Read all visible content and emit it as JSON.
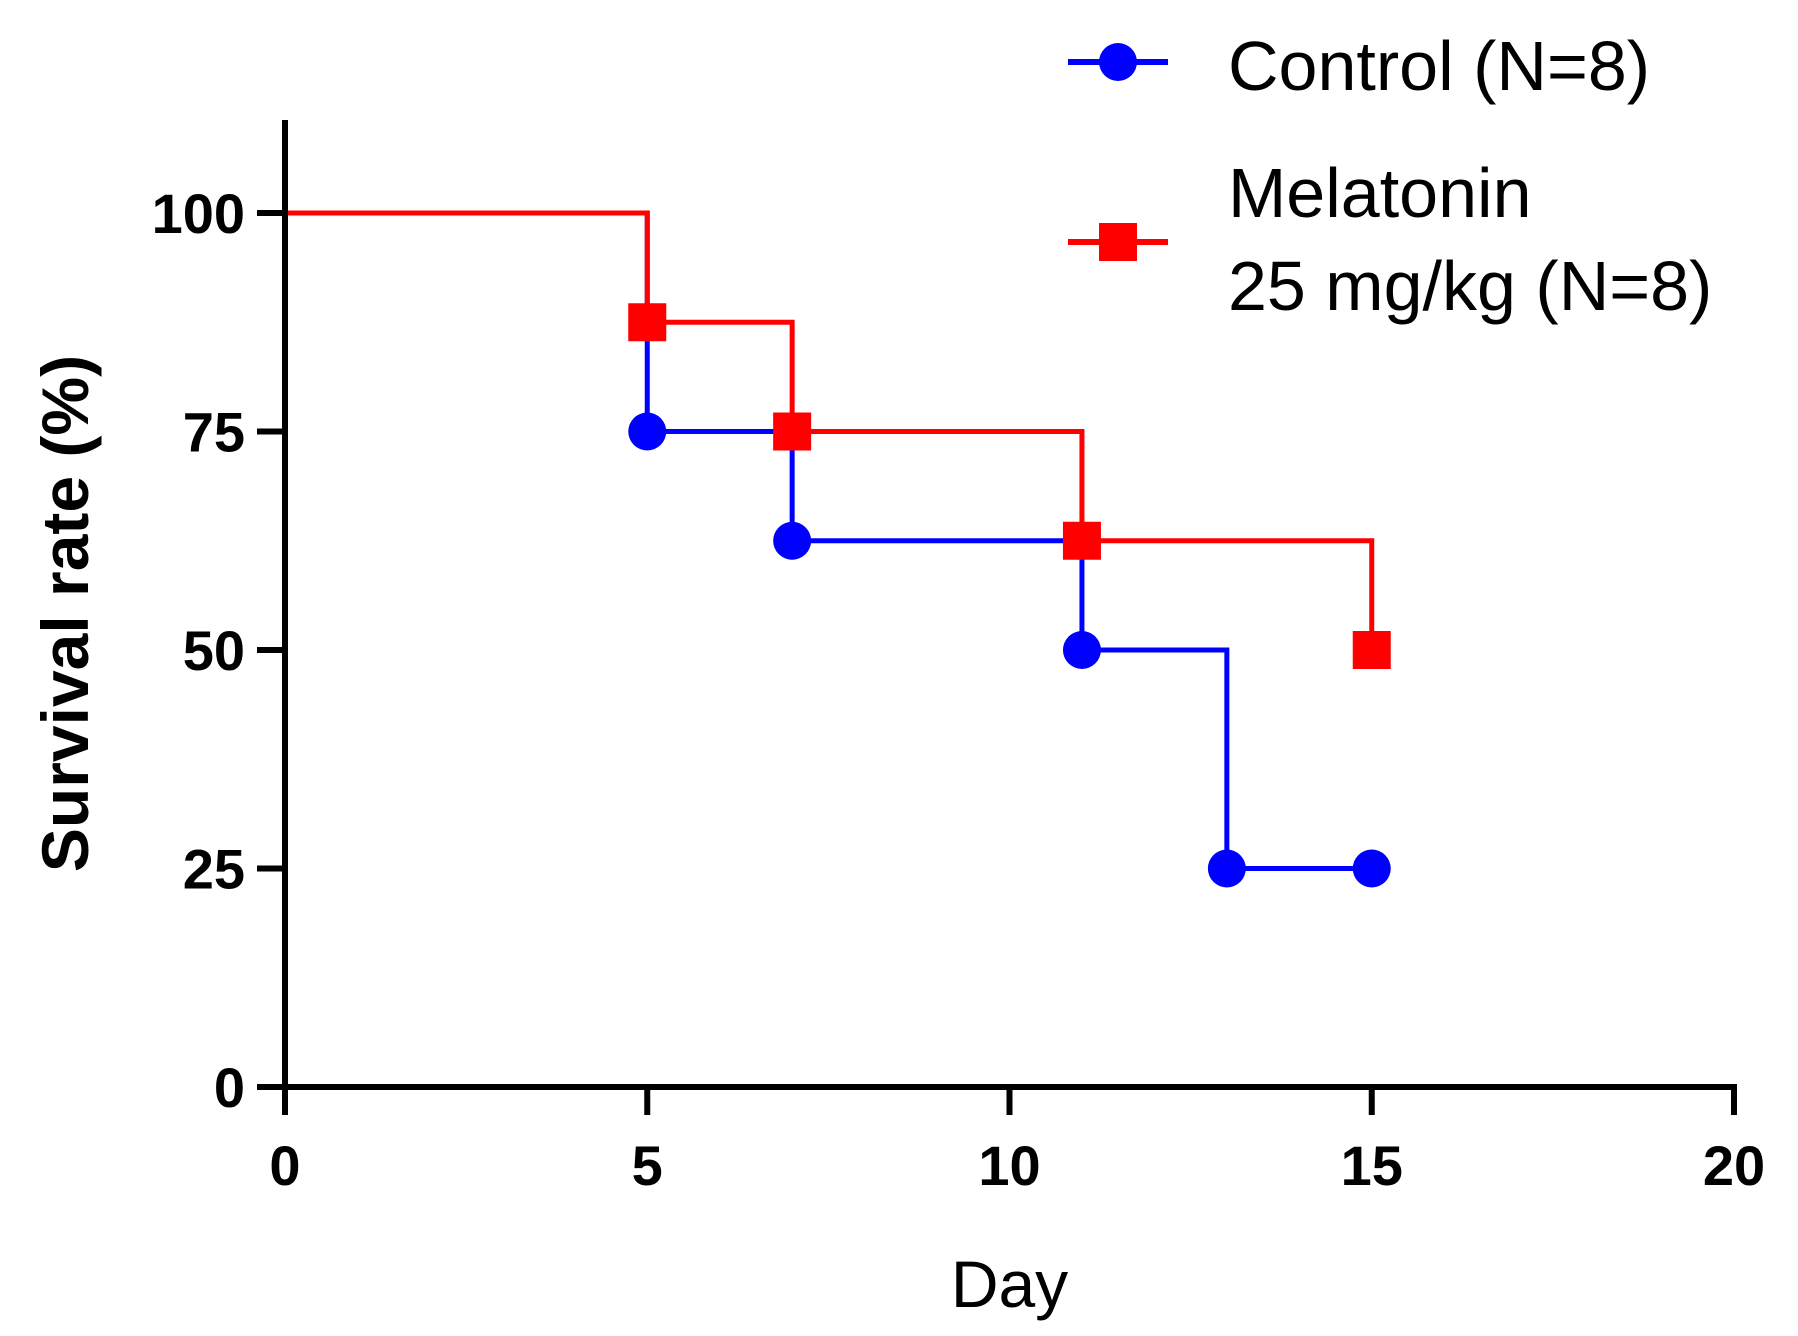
{
  "chart_data": {
    "type": "line",
    "step": true,
    "title": "",
    "xlabel": "Day",
    "ylabel": "Survival rate (%)",
    "xlim": [
      0,
      20
    ],
    "ylim": [
      0,
      110
    ],
    "xticks": [
      0,
      5,
      10,
      15,
      20
    ],
    "yticks": [
      0,
      25,
      50,
      75,
      100
    ],
    "xtick_labels": [
      "0",
      "5",
      "10",
      "15",
      "20"
    ],
    "ytick_labels": [
      "0",
      "25",
      "50",
      "75",
      "100"
    ],
    "grid": false,
    "legend_position": "top-right",
    "series": [
      {
        "name": "Control (N=8)",
        "legend_lines": [
          "Control (N=8)"
        ],
        "color": "#0000ff",
        "marker": "circle",
        "x": [
          0,
          5,
          7,
          11,
          13,
          15
        ],
        "y": [
          100,
          75,
          62.5,
          50,
          25,
          25
        ],
        "markers_x": [
          5,
          7,
          11,
          13,
          15
        ],
        "markers_y": [
          75,
          62.5,
          50,
          25,
          25
        ]
      },
      {
        "name": "Melatonin 25 mg/kg (N=8)",
        "legend_lines": [
          "Melatonin",
          "25 mg/kg (N=8)"
        ],
        "color": "#ff0000",
        "marker": "square",
        "x": [
          0,
          5,
          7,
          11,
          15
        ],
        "y": [
          100,
          87.5,
          75,
          62.5,
          50
        ],
        "markers_x": [
          5,
          7,
          11,
          15
        ],
        "markers_y": [
          87.5,
          75,
          62.5,
          50
        ]
      }
    ]
  }
}
